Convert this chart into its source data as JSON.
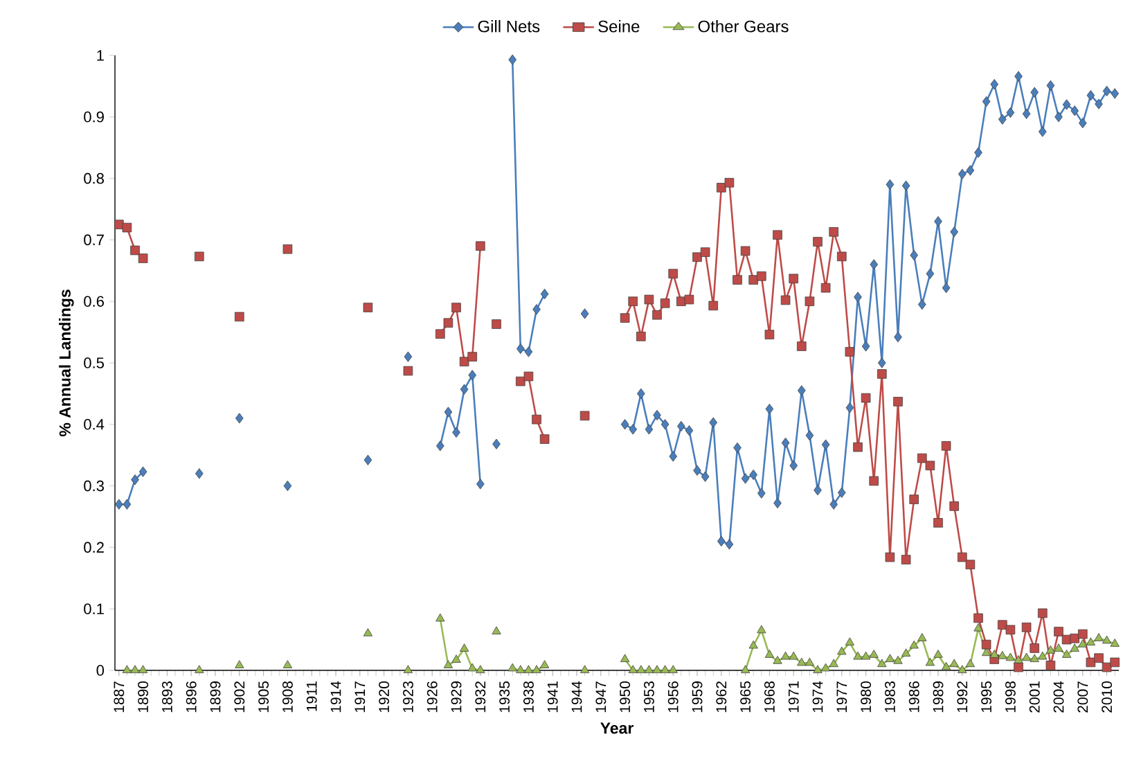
{
  "chart_data": {
    "type": "line",
    "xlabel": "Year",
    "ylabel": "% Annual Landings",
    "x": [
      1887,
      1888,
      1889,
      1890,
      1891,
      1892,
      1893,
      1894,
      1895,
      1896,
      1897,
      1898,
      1899,
      1900,
      1901,
      1902,
      1903,
      1904,
      1905,
      1906,
      1907,
      1908,
      1909,
      1910,
      1911,
      1912,
      1913,
      1914,
      1915,
      1916,
      1917,
      1918,
      1919,
      1920,
      1921,
      1922,
      1923,
      1924,
      1925,
      1926,
      1927,
      1928,
      1929,
      1930,
      1931,
      1932,
      1933,
      1934,
      1935,
      1936,
      1937,
      1938,
      1939,
      1940,
      1941,
      1942,
      1943,
      1944,
      1945,
      1946,
      1947,
      1948,
      1949,
      1950,
      1951,
      1952,
      1953,
      1954,
      1955,
      1956,
      1957,
      1958,
      1959,
      1960,
      1961,
      1962,
      1963,
      1964,
      1965,
      1966,
      1967,
      1968,
      1969,
      1970,
      1971,
      1972,
      1973,
      1974,
      1975,
      1976,
      1977,
      1978,
      1979,
      1980,
      1981,
      1982,
      1983,
      1984,
      1985,
      1986,
      1987,
      1988,
      1989,
      1990,
      1991,
      1992,
      1993,
      1994,
      1995,
      1996,
      1997,
      1998,
      1999,
      2000,
      2001,
      2002,
      2003,
      2004,
      2005,
      2006,
      2007,
      2008,
      2009,
      2010,
      2011
    ],
    "series": [
      {
        "name": "Gill Nets",
        "color": "#4a7ebb",
        "marker": "diamond",
        "values": [
          0.27,
          0.27,
          0.31,
          0.323,
          null,
          null,
          null,
          null,
          null,
          null,
          0.32,
          null,
          null,
          null,
          null,
          0.41,
          null,
          null,
          null,
          null,
          null,
          0.3,
          null,
          null,
          null,
          null,
          null,
          null,
          null,
          null,
          null,
          0.342,
          null,
          null,
          null,
          null,
          0.51,
          null,
          null,
          null,
          0.365,
          0.42,
          0.387,
          0.457,
          0.48,
          0.303,
          null,
          0.368,
          null,
          0.993,
          0.523,
          0.518,
          0.587,
          0.612,
          null,
          null,
          null,
          null,
          0.58,
          null,
          null,
          null,
          null,
          0.4,
          0.392,
          0.45,
          0.392,
          0.415,
          0.4,
          0.348,
          0.397,
          0.39,
          0.325,
          0.315,
          0.403,
          0.21,
          0.205,
          0.362,
          0.312,
          0.318,
          0.288,
          0.425,
          0.272,
          0.37,
          0.333,
          0.455,
          0.382,
          0.293,
          0.367,
          0.27,
          0.289,
          0.427,
          0.607,
          0.527,
          0.66,
          0.5,
          0.79,
          0.542,
          0.788,
          0.675,
          0.595,
          0.645,
          0.73,
          0.622,
          0.713,
          0.807,
          0.813,
          0.842,
          0.925,
          0.953,
          0.896,
          0.907,
          0.966,
          0.905,
          0.94,
          0.876,
          0.951,
          0.9,
          0.92,
          0.91,
          0.89,
          0.935,
          0.921,
          0.942,
          0.938
        ]
      },
      {
        "name": "Seine",
        "color": "#be4b48",
        "marker": "square",
        "values": [
          0.725,
          0.72,
          0.683,
          0.67,
          null,
          null,
          null,
          null,
          null,
          null,
          0.673,
          null,
          null,
          null,
          null,
          0.575,
          null,
          null,
          null,
          null,
          null,
          0.685,
          null,
          null,
          null,
          null,
          null,
          null,
          null,
          null,
          null,
          0.59,
          null,
          null,
          null,
          null,
          0.487,
          null,
          null,
          null,
          0.547,
          0.565,
          0.59,
          0.502,
          0.51,
          0.69,
          null,
          0.563,
          null,
          null,
          0.47,
          0.478,
          0.408,
          0.376,
          null,
          null,
          null,
          null,
          0.414,
          null,
          null,
          null,
          null,
          0.573,
          0.6,
          0.543,
          0.603,
          0.578,
          0.597,
          0.645,
          0.6,
          0.603,
          0.672,
          0.68,
          0.593,
          0.785,
          0.793,
          0.635,
          0.682,
          0.635,
          0.641,
          0.546,
          0.708,
          0.602,
          0.637,
          0.527,
          0.6,
          0.697,
          0.622,
          0.713,
          0.673,
          0.518,
          0.363,
          0.443,
          0.308,
          0.482,
          0.184,
          0.437,
          0.18,
          0.278,
          0.345,
          0.333,
          0.24,
          0.365,
          0.267,
          0.184,
          0.172,
          0.085,
          0.042,
          0.018,
          0.074,
          0.066,
          0.005,
          0.07,
          0.036,
          0.093,
          0.008,
          0.063,
          0.05,
          0.052,
          0.059,
          0.013,
          0.02,
          0.005,
          0.013
        ]
      },
      {
        "name": "Other Gears",
        "color": "#98b954",
        "marker": "triangle",
        "values": [
          null,
          0,
          0,
          0,
          null,
          null,
          null,
          null,
          null,
          null,
          0,
          null,
          null,
          null,
          null,
          0.008,
          null,
          null,
          null,
          null,
          null,
          0.008,
          null,
          null,
          null,
          null,
          null,
          null,
          null,
          null,
          null,
          0.06,
          null,
          null,
          null,
          null,
          0,
          null,
          null,
          null,
          0.084,
          0.008,
          0.017,
          0.035,
          0.003,
          0,
          null,
          0.063,
          null,
          0.003,
          0,
          0,
          0,
          0.008,
          null,
          null,
          null,
          null,
          0,
          null,
          null,
          null,
          null,
          0.018,
          0,
          0,
          0,
          0,
          0,
          0,
          null,
          null,
          null,
          null,
          null,
          null,
          null,
          null,
          0,
          0.04,
          0.065,
          0.025,
          0.015,
          0.022,
          0.022,
          0.012,
          0.012,
          0,
          0.003,
          0.01,
          0.03,
          0.045,
          0.022,
          0.022,
          0.025,
          0.01,
          0.018,
          0.015,
          0.027,
          0.04,
          0.052,
          0.012,
          0.025,
          0.005,
          0.01,
          0,
          0.01,
          0.068,
          0.028,
          0.025,
          0.023,
          0.02,
          0.016,
          0.02,
          0.018,
          0.022,
          0.032,
          0.035,
          0.025,
          0.035,
          0.042,
          0.045,
          0.052,
          0.048,
          0.043
        ]
      }
    ],
    "xlim": [
      1886.5,
      2011.5
    ],
    "xticks": [
      1887,
      1890,
      1893,
      1896,
      1899,
      1902,
      1905,
      1908,
      1911,
      1914,
      1917,
      1920,
      1923,
      1926,
      1929,
      1932,
      1935,
      1938,
      1941,
      1944,
      1947,
      1950,
      1953,
      1956,
      1959,
      1962,
      1965,
      1968,
      1971,
      1974,
      1977,
      1980,
      1983,
      1986,
      1989,
      1992,
      1995,
      1998,
      2001,
      2004,
      2007,
      2010
    ],
    "ylim": [
      0,
      1
    ],
    "yticks": [
      0,
      0.1,
      0.2,
      0.3,
      0.4,
      0.5,
      0.6,
      0.7,
      0.8,
      0.9,
      1
    ],
    "grid": false,
    "legend": "top"
  }
}
